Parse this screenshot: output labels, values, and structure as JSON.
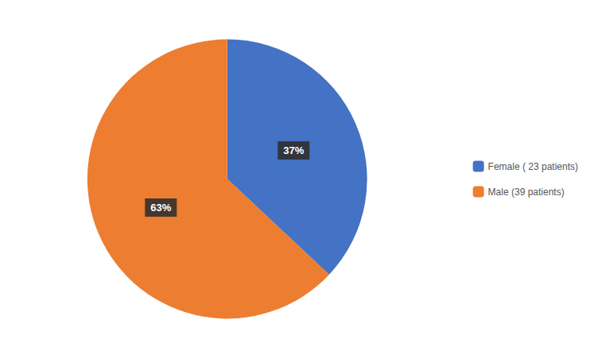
{
  "chart_data": {
    "type": "pie",
    "categories": [
      "Female ( 23 patients)",
      "Male (39 patients)"
    ],
    "values": [
      37,
      63
    ],
    "value_labels": [
      "37%",
      "63%"
    ],
    "colors": [
      "#4472C4",
      "#ED7D31"
    ],
    "data_labels": true,
    "legend": "right"
  }
}
